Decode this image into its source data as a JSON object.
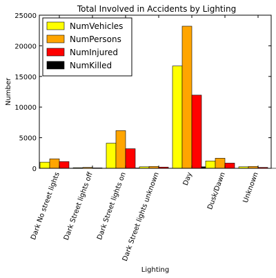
{
  "chart_data": {
    "type": "bar",
    "title": "Total Involved in Accidents by Lighting",
    "xlabel": "Lighting",
    "ylabel": "Number",
    "ylim": [
      0,
      25000
    ],
    "yticks": [
      0,
      5000,
      10000,
      15000,
      20000,
      25000
    ],
    "grid": false,
    "legend_position": "top-left",
    "categories": [
      "Dark No street lights",
      "Dark Street lights off",
      "Dark Street lights on",
      "Dark Street lights unknown",
      "Day",
      "Dusk/Dawn",
      "Unknown"
    ],
    "series": [
      {
        "name": "NumVehicles",
        "color": "#ffff00",
        "values": [
          1000,
          100,
          4100,
          250,
          16700,
          1200,
          250
        ]
      },
      {
        "name": "NumPersons",
        "color": "#ffa500",
        "values": [
          1550,
          150,
          6150,
          300,
          23200,
          1650,
          300
        ]
      },
      {
        "name": "NumInjured",
        "color": "#ff0000",
        "values": [
          1100,
          70,
          3200,
          200,
          11950,
          850,
          150
        ]
      },
      {
        "name": "NumKilled",
        "color": "#000000",
        "values": [
          30,
          5,
          60,
          5,
          250,
          20,
          5
        ]
      }
    ]
  }
}
